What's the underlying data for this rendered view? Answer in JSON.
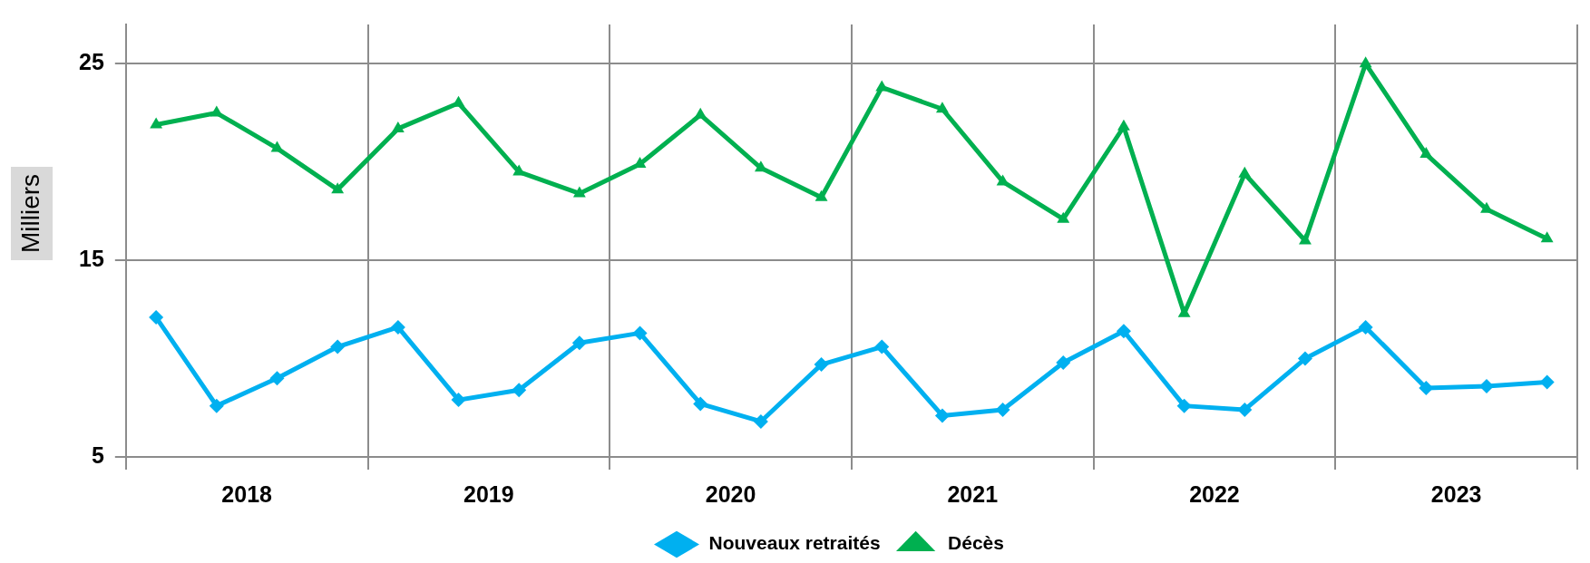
{
  "chart_data": {
    "type": "line",
    "ylabel": "Milliers",
    "x": [
      2018.125,
      2018.375,
      2018.625,
      2018.875,
      2019.125,
      2019.375,
      2019.625,
      2019.875,
      2020.125,
      2020.375,
      2020.625,
      2020.875,
      2021.125,
      2021.375,
      2021.625,
      2021.875,
      2022.125,
      2022.375,
      2022.625,
      2022.875,
      2023.125,
      2023.375,
      2023.625,
      2023.875
    ],
    "xlim": [
      2018,
      2024
    ],
    "xticks": [
      {
        "value": 2018,
        "label": null
      },
      {
        "value": 2018.5,
        "label": "2018"
      },
      {
        "value": 2019,
        "label": null
      },
      {
        "value": 2019.5,
        "label": "2019"
      },
      {
        "value": 2020,
        "label": null
      },
      {
        "value": 2020.5,
        "label": "2020"
      },
      {
        "value": 2021,
        "label": null
      },
      {
        "value": 2021.5,
        "label": "2021"
      },
      {
        "value": 2022,
        "label": null
      },
      {
        "value": 2022.5,
        "label": "2022"
      },
      {
        "value": 2023,
        "label": null
      },
      {
        "value": 2023.5,
        "label": "2023"
      },
      {
        "value": 2024,
        "label": null
      }
    ],
    "ylim": [
      5,
      27
    ],
    "yticks": [
      5,
      15,
      25
    ],
    "grid": true,
    "legend": "bottom",
    "series": [
      {
        "name": "Nouveaux retraités",
        "color": "#00b0f0",
        "marker": "diamond",
        "values": [
          12.1,
          7.6,
          9.0,
          10.6,
          11.6,
          7.9,
          8.4,
          10.8,
          11.3,
          7.7,
          6.8,
          9.7,
          10.6,
          7.1,
          7.4,
          9.8,
          11.4,
          7.6,
          7.4,
          10.0,
          11.6,
          8.5,
          8.6,
          8.8
        ]
      },
      {
        "name": "Décès",
        "color": "#00b050",
        "marker": "triangle",
        "values": [
          21.9,
          22.5,
          20.7,
          18.6,
          21.7,
          23.0,
          19.5,
          18.4,
          19.9,
          22.4,
          19.7,
          18.2,
          23.8,
          22.7,
          19.0,
          17.1,
          21.8,
          12.3,
          19.4,
          16.0,
          25.0,
          20.4,
          17.6,
          16.1
        ]
      }
    ]
  }
}
